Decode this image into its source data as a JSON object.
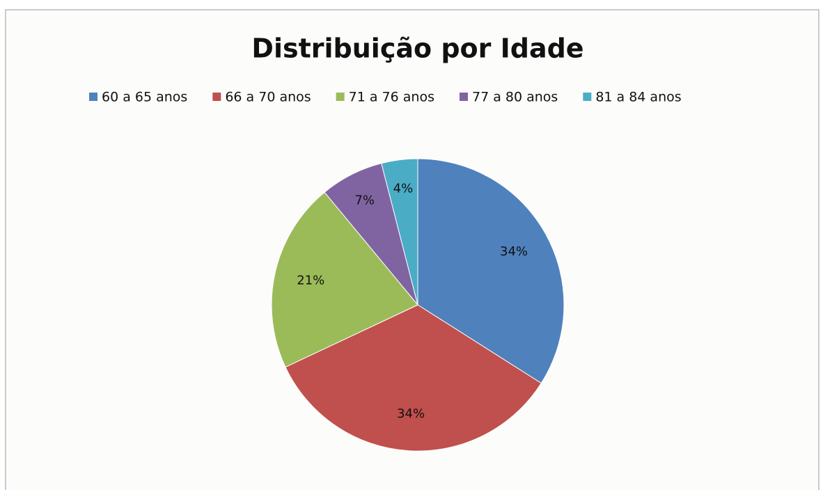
{
  "chart_data": {
    "type": "pie",
    "title": "Distribuição por Idade",
    "categories": [
      "60 a 65 anos",
      "66 a 70 anos",
      "71 a 76 anos",
      "77 a 80 anos",
      "81 a 84 anos"
    ],
    "values": [
      34,
      34,
      21,
      7,
      4
    ],
    "value_labels": [
      "34%",
      "34%",
      "21%",
      "7%",
      "4%"
    ],
    "colors": [
      "#4f81bd",
      "#c0504d",
      "#9bbb59",
      "#8064a2",
      "#4bacc6"
    ],
    "legend": "top"
  }
}
